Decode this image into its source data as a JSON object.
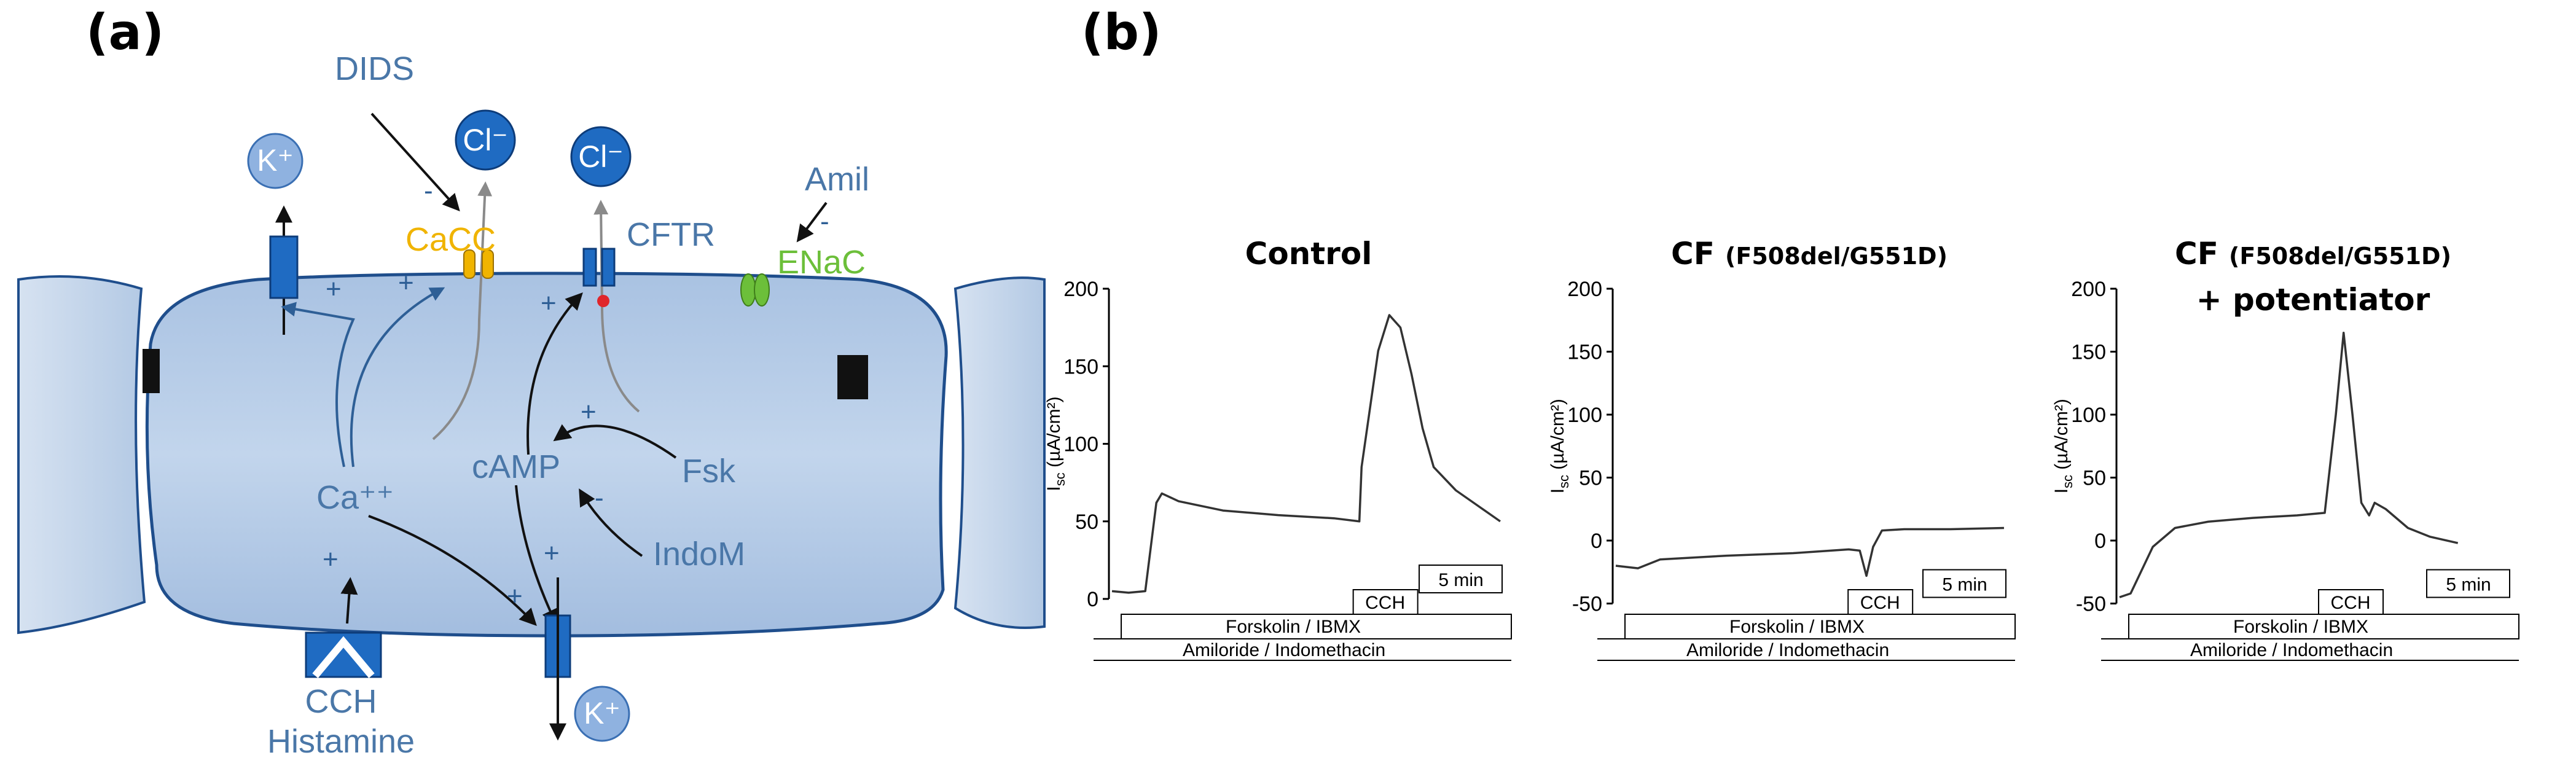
{
  "panel_a": {
    "label": "(a)",
    "ions": {
      "k_top": "K⁺",
      "cl_cacc": "Cl⁻",
      "cl_cftr": "Cl⁻",
      "k_bottom": "K⁺"
    },
    "labels": {
      "dids": "DIDS",
      "amil": "Amil",
      "cacc": "CaCC",
      "cftr": "CFTR",
      "enac": "ENaC",
      "camp": "cAMP",
      "ca": "Ca⁺⁺",
      "fsk": "Fsk",
      "indom": "IndoM",
      "cch": "CCH",
      "histamine": "Histamine"
    },
    "signs": {
      "plus": "+",
      "minus": "-"
    },
    "colors": {
      "cell": "#b8cde6",
      "membrane": "#1f4e8c",
      "channel": "#1f6bc2",
      "cacc": "#f0b400",
      "enac": "#6cbf3a",
      "text": "#4a77a8"
    }
  },
  "panel_b": {
    "label": "(b)",
    "y_axis_label": "I_sc (µA/cm²)",
    "scale_bar": "5 min",
    "cch_label": "CCH",
    "bar_forsk": "Forskolin / IBMX",
    "bar_amil": "Amiloride / Indomethacin"
  },
  "chart_data": [
    {
      "type": "line",
      "title": "Control",
      "subtitle": "",
      "ylabel": "Isc (µA/cm²)",
      "ylim": [
        0,
        200
      ],
      "yticks": [
        0,
        50,
        100,
        150,
        200
      ],
      "x_unit": "min",
      "x": [
        0,
        1.5,
        3,
        4,
        4.5,
        6,
        10,
        15,
        20,
        22.3,
        22.5,
        24,
        25,
        26,
        27,
        28,
        29,
        31,
        33,
        35
      ],
      "values": [
        5,
        4,
        5,
        62,
        68,
        63,
        57,
        54,
        52,
        50,
        85,
        160,
        183,
        175,
        145,
        110,
        85,
        70,
        60,
        50
      ]
    },
    {
      "type": "line",
      "title": "CF",
      "subtitle": "(F508del/G551D)",
      "ylabel": "Isc (µA/cm²)",
      "ylim": [
        -50,
        200
      ],
      "yticks": [
        -50,
        0,
        50,
        100,
        150,
        200
      ],
      "x_unit": "min",
      "x": [
        0,
        2,
        4,
        10,
        16,
        21,
        22,
        22.6,
        23.2,
        24,
        26,
        30,
        35
      ],
      "values": [
        -20,
        -22,
        -15,
        -12,
        -10,
        -7,
        -8,
        -28,
        -5,
        8,
        9,
        9,
        10
      ]
    },
    {
      "type": "line",
      "title": "CF",
      "subtitle": "(F508del/G551D)",
      "title_line2": "+ potentiator",
      "ylabel": "Isc (µA/cm²)",
      "ylim": [
        -50,
        200
      ],
      "yticks": [
        -50,
        0,
        50,
        100,
        150,
        200
      ],
      "x_unit": "min",
      "x": [
        0,
        1,
        3,
        5,
        8,
        12,
        16,
        18.5,
        19.5,
        20.2,
        21,
        21.8,
        22.5,
        23,
        24,
        26,
        28,
        30.5
      ],
      "values": [
        -45,
        -42,
        -5,
        10,
        15,
        18,
        20,
        22,
        100,
        165,
        100,
        30,
        20,
        30,
        25,
        10,
        3,
        -2
      ]
    }
  ]
}
